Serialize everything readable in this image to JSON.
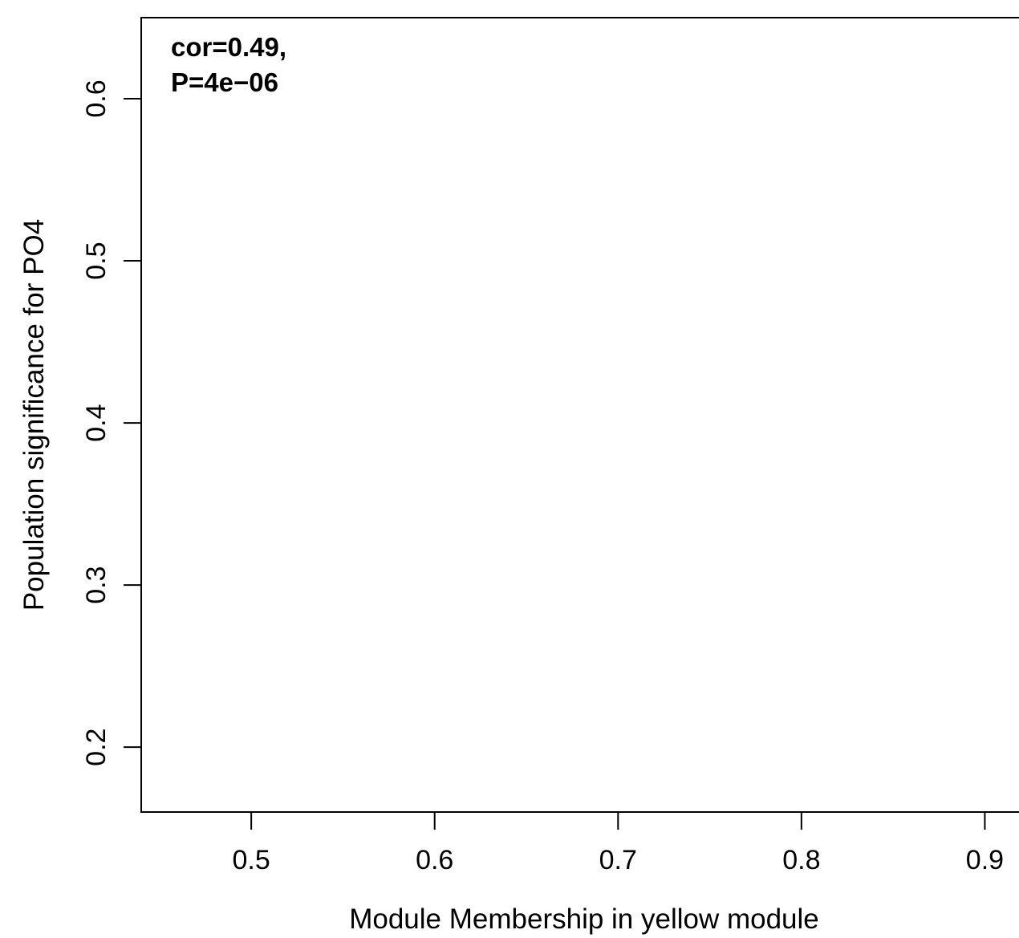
{
  "chart_data": {
    "type": "scatter",
    "title": "",
    "xlabel": "Module Membership in yellow module",
    "ylabel": "Population significance for  PO4",
    "xlim": [
      0.44,
      0.93
    ],
    "ylim": [
      0.16,
      0.65
    ],
    "x_ticks": [
      0.5,
      0.6,
      0.7,
      0.8,
      0.9
    ],
    "x_tick_labels": [
      "0.5",
      "0.6",
      "0.7",
      "0.8",
      "0.9"
    ],
    "y_ticks": [
      0.2,
      0.3,
      0.4,
      0.5,
      0.6
    ],
    "y_tick_labels": [
      "0.2",
      "0.3",
      "0.4",
      "0.5",
      "0.6"
    ],
    "series": [
      {
        "x": [],
        "y": []
      }
    ],
    "annotations": [
      "cor=0.49,",
      "P=4e−06"
    ],
    "grid": false
  }
}
